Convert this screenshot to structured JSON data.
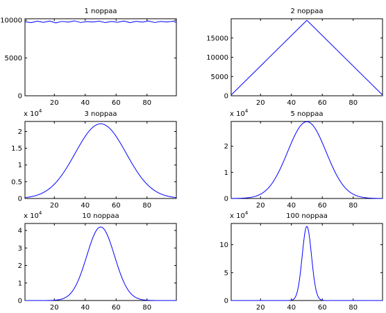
{
  "colors": {
    "series": "#0000ff",
    "axes": "#000000",
    "background": "#ffffff"
  },
  "chart_data": [
    {
      "type": "line",
      "title": "1 noppaa",
      "xlim": [
        1,
        99
      ],
      "ylim": [
        0,
        10200
      ],
      "xticks": [
        20,
        40,
        60,
        80
      ],
      "xtick_labels": [
        "20",
        "40",
        "60",
        "80"
      ],
      "yticks": [
        0,
        5000,
        10000
      ],
      "ytick_labels": [
        "0",
        "5000",
        "10000"
      ],
      "exponent_label": null,
      "grid": false,
      "series": [
        {
          "shape": "flat",
          "baseline": 9800,
          "x": [
            1,
            5,
            9,
            13,
            17,
            21,
            25,
            29,
            33,
            37,
            41,
            45,
            49,
            53,
            57,
            61,
            65,
            69,
            73,
            77,
            81,
            85,
            89,
            93,
            97,
            99
          ],
          "y": [
            9800,
            9680,
            9880,
            9720,
            9900,
            9650,
            9850,
            9750,
            9920,
            9700,
            9820,
            9760,
            9880,
            9690,
            9840,
            9730,
            9900,
            9680,
            9860,
            9750,
            9900,
            9700,
            9840,
            9760,
            9880,
            9700
          ]
        }
      ]
    },
    {
      "type": "line",
      "title": "2 noppaa",
      "xlim": [
        1,
        99
      ],
      "ylim": [
        0,
        20000
      ],
      "xticks": [
        20,
        40,
        60,
        80
      ],
      "xtick_labels": [
        "20",
        "40",
        "60",
        "80"
      ],
      "yticks": [
        0,
        5000,
        10000,
        15000
      ],
      "ytick_labels": [
        "0",
        "5000",
        "10000",
        "15000"
      ],
      "exponent_label": null,
      "grid": false,
      "series": [
        {
          "shape": "triangle",
          "x": [
            1,
            50,
            99
          ],
          "y": [
            200,
            19600,
            200
          ]
        }
      ]
    },
    {
      "type": "line",
      "title": "3 noppaa",
      "xlim": [
        1,
        99
      ],
      "ylim": [
        0,
        23000
      ],
      "xticks": [
        20,
        40,
        60,
        80
      ],
      "xtick_labels": [
        "20",
        "40",
        "60",
        "80"
      ],
      "yticks": [
        0,
        5000,
        10000,
        15000,
        20000
      ],
      "ytick_labels": [
        "0",
        "0.5",
        "1",
        "1.5",
        "2"
      ],
      "exponent_label": "x 10",
      "exponent_power": "4",
      "grid": false,
      "series": [
        {
          "shape": "gaussian",
          "peak": 22300,
          "center": 50,
          "sigma": 16.5
        }
      ]
    },
    {
      "type": "line",
      "title": "5 noppaa",
      "xlim": [
        1,
        99
      ],
      "ylim": [
        0,
        29500
      ],
      "xticks": [
        20,
        40,
        60,
        80
      ],
      "xtick_labels": [
        "20",
        "40",
        "60",
        "80"
      ],
      "yticks": [
        0,
        10000,
        20000
      ],
      "ytick_labels": [
        "0",
        "1",
        "2"
      ],
      "exponent_label": "x 10",
      "exponent_power": "4",
      "grid": false,
      "series": [
        {
          "shape": "gaussian",
          "peak": 29400,
          "center": 50,
          "sigma": 12.5
        }
      ]
    },
    {
      "type": "line",
      "title": "10 noppaa",
      "xlim": [
        1,
        99
      ],
      "ylim": [
        0,
        44000
      ],
      "xticks": [
        20,
        40,
        60,
        80
      ],
      "xtick_labels": [
        "20",
        "40",
        "60",
        "80"
      ],
      "yticks": [
        0,
        10000,
        20000,
        30000,
        40000
      ],
      "ytick_labels": [
        "0",
        "1",
        "2",
        "3",
        "4"
      ],
      "exponent_label": "x 10",
      "exponent_power": "4",
      "grid": false,
      "series": [
        {
          "shape": "gaussian",
          "peak": 42000,
          "center": 50,
          "sigma": 9.0
        }
      ]
    },
    {
      "type": "line",
      "title": "100 noppaa",
      "xlim": [
        1,
        99
      ],
      "ylim": [
        0,
        138000
      ],
      "xticks": [
        20,
        40,
        60,
        80
      ],
      "xtick_labels": [
        "20",
        "40",
        "60",
        "80"
      ],
      "yticks": [
        0,
        50000,
        100000
      ],
      "ytick_labels": [
        "0",
        "5",
        "10"
      ],
      "exponent_label": "x 10",
      "exponent_power": "4",
      "grid": false,
      "series": [
        {
          "shape": "gaussian",
          "peak": 133000,
          "center": 50,
          "sigma": 3.0
        }
      ]
    }
  ]
}
